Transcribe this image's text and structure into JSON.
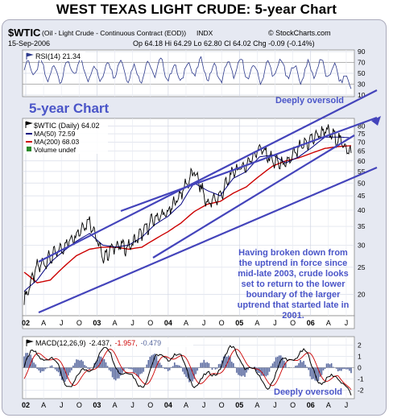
{
  "title": "WEST TEXAS LIGHT CRUDE: 5-year Chart",
  "header": {
    "symbol": "$WTIC",
    "description": "(Oil - Light Crude - Continuous Contract (EOD))",
    "exchange": "INDX",
    "source": "© StockCharts.com",
    "date": "15-Sep-2006",
    "ohlc": "Op 64.18  Hi 64.29  Lo 62.80  Cl 64.02  Chg -0.09 (-0.14%)"
  },
  "rsi": {
    "label": "RSI(14) 21.34",
    "ticks": [
      "90",
      "70",
      "50",
      "30",
      "10"
    ],
    "annotation": "Deeply oversold"
  },
  "main": {
    "chart_label": "5-year Chart",
    "legend": {
      "symbol": "$WTIC (Daily) 64.02",
      "ma50": "MA(50) 72.59",
      "ma200": "MA(200) 68.03",
      "volume": "Volume undef"
    },
    "ticks": [
      "80",
      "75",
      "70",
      "65",
      "60",
      "55",
      "50",
      "45",
      "40",
      "35",
      "30",
      "25",
      "20"
    ],
    "annotation": "Having broken down from the uptrend in force since mid-late 2003, crude looks set to return to the lower boundary of the larger uptrend that started late in 2001."
  },
  "macd": {
    "label_name": "MACD(12,26,9)",
    "label_macd": "-2.437,",
    "label_signal": "-1.957,",
    "label_hist": "-0.479",
    "ticks": [
      "2",
      "1",
      "0",
      "-1",
      "-2"
    ],
    "annotation": "Deeply oversold"
  },
  "x_axis": [
    "02",
    "A",
    "J",
    "O",
    "03",
    "A",
    "J",
    "O",
    "04",
    "A",
    "J",
    "O",
    "05",
    "A",
    "J",
    "O",
    "06",
    "A",
    "J"
  ],
  "colors": {
    "panel_bg": "#e6e9f2",
    "price": "#000000",
    "ma50": "#000080",
    "ma200": "#cc0000",
    "trendline": "#4444bb",
    "annotation": "#4a55c8",
    "histogram": "#5a6aa0"
  },
  "chart_data": {
    "type": "line",
    "title": "WEST TEXAS LIGHT CRUDE: 5-year Chart",
    "xlabel": "",
    "ylabel": "",
    "y_scale": "log",
    "x": [
      "2002-01",
      "2002-04",
      "2002-07",
      "2002-10",
      "2003-01",
      "2003-03",
      "2003-04",
      "2003-07",
      "2003-10",
      "2004-01",
      "2004-04",
      "2004-06",
      "2004-08",
      "2004-10",
      "2004-12",
      "2005-01",
      "2005-04",
      "2005-06",
      "2005-08",
      "2005-10",
      "2005-12",
      "2006-01",
      "2006-04",
      "2006-07",
      "2006-08",
      "2006-09"
    ],
    "series": [
      {
        "name": "$WTIC",
        "values": [
          19.0,
          25.0,
          27.0,
          29.5,
          33.0,
          37.0,
          27.0,
          30.0,
          29.5,
          33.0,
          37.5,
          39.0,
          46.0,
          55.0,
          42.0,
          45.0,
          55.0,
          58.0,
          67.0,
          60.0,
          58.0,
          66.0,
          72.0,
          77.0,
          72.0,
          64.0
        ]
      },
      {
        "name": "MA(50)",
        "values": [
          20.5,
          22.5,
          26.0,
          28.5,
          31.0,
          33.0,
          30.0,
          29.5,
          30.0,
          32.0,
          35.5,
          38.0,
          42.0,
          50.0,
          47.0,
          45.0,
          52.0,
          55.0,
          62.0,
          63.0,
          59.0,
          62.0,
          67.0,
          73.0,
          73.0,
          72.6
        ]
      },
      {
        "name": "MA(200)",
        "values": [
          24.0,
          22.0,
          22.5,
          25.0,
          27.5,
          29.0,
          29.5,
          29.5,
          29.0,
          29.5,
          31.5,
          33.5,
          36.0,
          39.5,
          42.0,
          43.0,
          46.0,
          48.5,
          53.0,
          57.5,
          60.0,
          61.5,
          64.0,
          66.5,
          67.5,
          68.0
        ]
      }
    ],
    "ylim": [
      17,
      84
    ],
    "rsi_ylim": [
      10,
      90
    ],
    "macd_ylim": [
      -2.6,
      2.6
    ],
    "grid": true
  }
}
